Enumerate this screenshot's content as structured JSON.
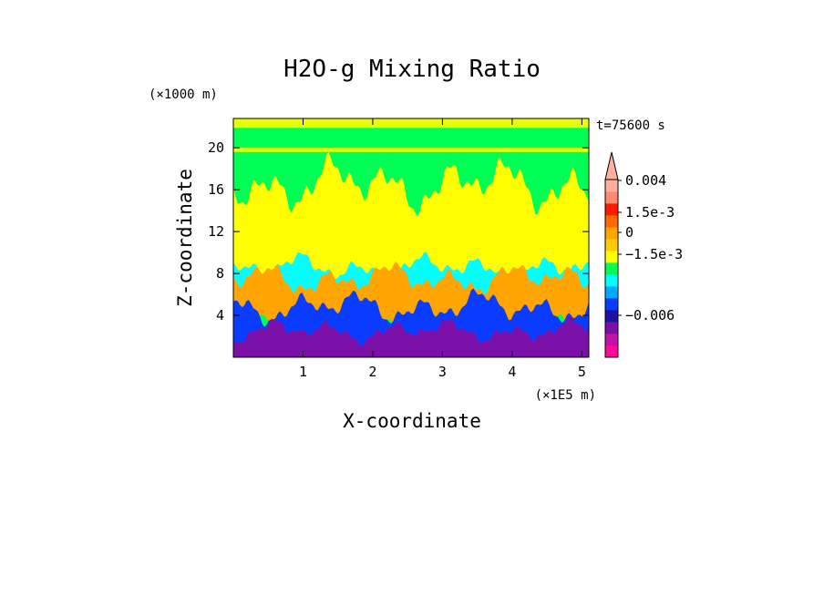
{
  "chart_data": {
    "type": "heatmap",
    "title": "H2O-g Mixing Ratio",
    "xlabel": "X-coordinate",
    "ylabel": "Z-coordinate",
    "x_unit": "(×1E5 m)",
    "y_unit": "(×1000 m)",
    "time_label": "t=75600 s",
    "xlim": [
      0,
      5.1
    ],
    "ylim": [
      0,
      22.8
    ],
    "x_ticks": [
      "1",
      "2",
      "3",
      "4",
      "5"
    ],
    "x_tick_values": [
      1,
      2,
      3,
      4,
      5
    ],
    "y_ticks": [
      "4",
      "8",
      "12",
      "16",
      "20"
    ],
    "y_tick_values": [
      4,
      8,
      12,
      16,
      20
    ],
    "colorbar": {
      "colors": [
        "#ff0a9a",
        "#c414a8",
        "#7a10a8",
        "#1e10a0",
        "#0a3cff",
        "#00a8ff",
        "#00ffff",
        "#00ff55",
        "#ffff00",
        "#ffcc00",
        "#ffa500",
        "#ff6a00",
        "#ff1a00",
        "#ff8a70",
        "#ffb0a0"
      ],
      "labels": [
        {
          "text": "0.004",
          "level": 0.004
        },
        {
          "text": "1.5e-3",
          "level": 0.0015
        },
        {
          "text": "0",
          "level": 0
        },
        {
          "text": "−1.5e-3",
          "level": -0.0015
        },
        {
          "text": "−0.006",
          "level": -0.006
        }
      ],
      "extend": "max"
    },
    "layers": [
      {
        "name": "green",
        "color": "#00ff55",
        "z_bottom": 7.5,
        "z_top": 22.8
      },
      {
        "name": "yellow",
        "color": "#ffff00",
        "z_bottom": 6.5,
        "z_top": 16.5
      },
      {
        "name": "cyan",
        "color": "#00ffff",
        "z_bottom": 4.8,
        "z_top": 8.5
      },
      {
        "name": "orange",
        "color": "#ffa500",
        "z_bottom": 3.0,
        "z_top": 7.5
      },
      {
        "name": "blue",
        "color": "#0a3cff",
        "z_bottom": 0,
        "z_top": 4.8
      },
      {
        "name": "purple",
        "color": "#7a10a8",
        "z_bottom": 0,
        "z_top": 2.5
      }
    ]
  }
}
